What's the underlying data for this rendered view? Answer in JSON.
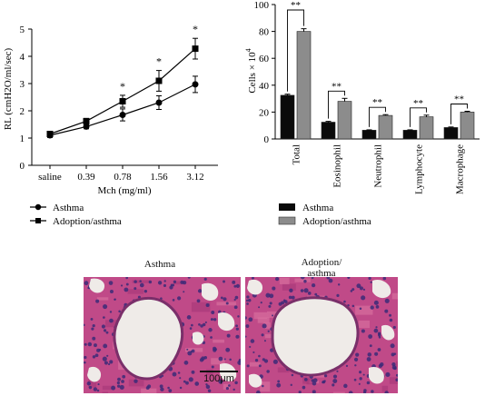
{
  "chart_data": [
    {
      "type": "line",
      "ylabel": "RL (cmH2O/ml/sec)",
      "xlabel": "Mch (mg/ml)",
      "categories": [
        "saline",
        "0.39",
        "0.78",
        "1.56",
        "3.12"
      ],
      "ylim": [
        0,
        5
      ],
      "yticks": [
        "0",
        "1",
        "2",
        "3",
        "4",
        "5"
      ],
      "grid": false,
      "legend_position": "bottom-left",
      "series": [
        {
          "name": "Asthma",
          "marker": "circle",
          "values": [
            1.1,
            1.42,
            1.85,
            2.3,
            2.97
          ],
          "errors": [
            0.08,
            0.08,
            0.22,
            0.25,
            0.3
          ]
        },
        {
          "name": "Adoption/asthma",
          "marker": "square",
          "values": [
            1.15,
            1.62,
            2.35,
            3.1,
            4.28
          ],
          "errors": [
            0.08,
            0.1,
            0.22,
            0.38,
            0.38
          ]
        }
      ],
      "annotations": [
        {
          "category": "0.78",
          "text": "*"
        },
        {
          "category": "1.56",
          "text": "*"
        },
        {
          "category": "3.12",
          "text": "*"
        }
      ]
    },
    {
      "type": "bar",
      "ylabel": "Cells × 10",
      "ylabel_exp": "4",
      "categories": [
        "Total",
        "Eosinophil",
        "Neutrophil",
        "Lymphocyte",
        "Macrophage"
      ],
      "ylim": [
        0,
        100
      ],
      "yticks": [
        "0",
        "20",
        "40",
        "60",
        "80",
        "100"
      ],
      "grid": false,
      "legend_position": "bottom",
      "series": [
        {
          "name": "Asthma",
          "color": "#0a0a0a",
          "values": [
            32.5,
            12.5,
            6.5,
            6.5,
            8.5
          ],
          "errors": [
            0.8,
            0.6,
            0.3,
            0.3,
            0.4
          ]
        },
        {
          "name": "Adoption/asthma",
          "color": "#8c8c8c",
          "values": [
            80,
            28,
            17.5,
            16.5,
            20
          ],
          "errors": [
            2.0,
            2.2,
            0.6,
            1.2,
            0.6
          ]
        }
      ],
      "significance": [
        "**",
        "**",
        "**",
        "**",
        "**"
      ]
    }
  ],
  "images": {
    "left_label": "Asthma",
    "right_label_line1": "Adoption/",
    "right_label_line2": "asthma",
    "scale_bar_label": "100μm",
    "tissue_color": "#c04a88",
    "nuclei_color": "#3b2a78",
    "lumen_color": "#efebe8"
  }
}
